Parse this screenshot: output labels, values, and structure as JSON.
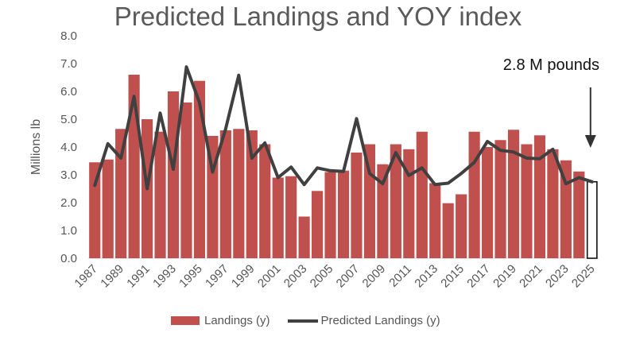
{
  "chart_data": {
    "type": "bar+line",
    "title": "Predicted Landings and YOY index",
    "xlabel": "",
    "ylabel": "Millions lb",
    "ylim": [
      0,
      8
    ],
    "yticks": [
      "0.0",
      "1.0",
      "2.0",
      "3.0",
      "4.0",
      "5.0",
      "6.0",
      "7.0",
      "8.0"
    ],
    "years": [
      1987,
      1988,
      1989,
      1990,
      1991,
      1992,
      1993,
      1994,
      1995,
      1996,
      1997,
      1998,
      1999,
      2000,
      2001,
      2002,
      2003,
      2004,
      2005,
      2006,
      2007,
      2008,
      2009,
      2010,
      2011,
      2012,
      2013,
      2014,
      2015,
      2016,
      2017,
      2018,
      2019,
      2020,
      2021,
      2022,
      2023,
      2024,
      2025
    ],
    "xtick_labels": [
      "1987",
      "1989",
      "1991",
      "1993",
      "1995",
      "1997",
      "1999",
      "2001",
      "2003",
      "2005",
      "2007",
      "2009",
      "2011",
      "2013",
      "2015",
      "2017",
      "2019",
      "2021",
      "2023",
      "2025"
    ],
    "series": [
      {
        "name": "Landings (y)",
        "kind": "bar",
        "color": "#c0504d",
        "values": [
          3.45,
          3.55,
          4.65,
          6.6,
          5.0,
          4.55,
          6.0,
          5.6,
          6.38,
          4.4,
          4.6,
          4.65,
          4.6,
          4.1,
          2.9,
          2.95,
          1.5,
          2.42,
          3.1,
          3.15,
          3.8,
          4.1,
          3.38,
          4.1,
          3.92,
          4.55,
          2.7,
          1.98,
          2.3,
          4.55,
          4.0,
          4.25,
          4.62,
          4.1,
          4.42,
          3.92,
          3.52,
          3.12,
          null
        ]
      },
      {
        "name": "Predicted Landings (y)",
        "kind": "line",
        "color": "#404040",
        "values": [
          2.62,
          4.12,
          3.6,
          5.82,
          2.5,
          5.22,
          3.2,
          6.88,
          5.6,
          3.1,
          4.65,
          6.58,
          3.6,
          4.15,
          2.9,
          3.28,
          2.65,
          3.25,
          3.15,
          3.12,
          5.02,
          3.05,
          2.68,
          3.8,
          2.98,
          3.25,
          2.65,
          2.7,
          3.05,
          3.45,
          4.2,
          3.88,
          3.82,
          3.6,
          3.58,
          3.92,
          2.68,
          2.9,
          2.75
        ]
      },
      {
        "name": "Prediction 2025",
        "kind": "outlined-bar",
        "year": 2025,
        "value": 2.75
      }
    ],
    "annotations": [
      {
        "text": "2.8 M pounds",
        "target_year": 2025
      }
    ]
  }
}
